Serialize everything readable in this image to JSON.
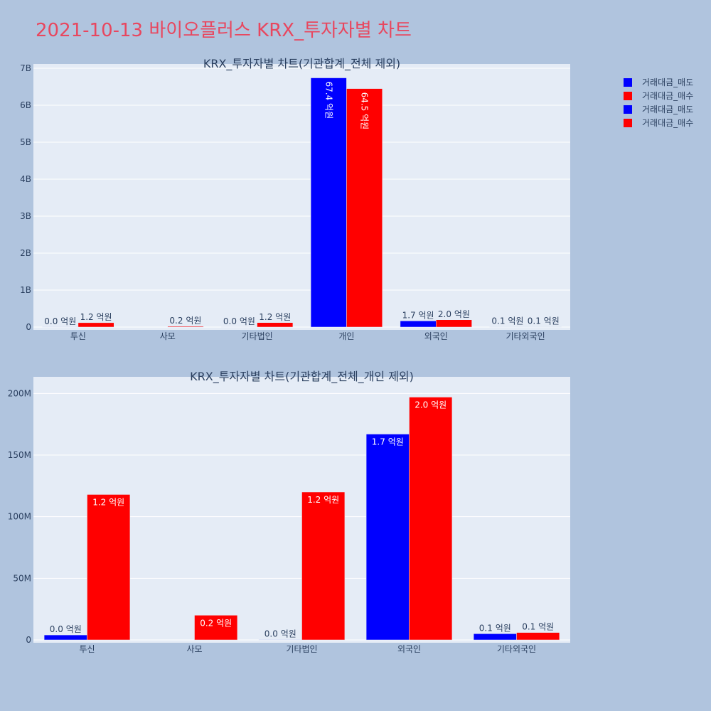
{
  "page_title": "2021-10-13 바이오플러스 KRX_투자자별 차트",
  "legend": [
    {
      "label": "거래대금_매도",
      "color": "#0000ff"
    },
    {
      "label": "거래대금_매수",
      "color": "#ff0000"
    },
    {
      "label": "거래대금_매도",
      "color": "#0000ff"
    },
    {
      "label": "거래대금_매수",
      "color": "#ff0000"
    }
  ],
  "chart_data": [
    {
      "type": "bar",
      "title": "KRX_투자자별 차트(기관합계_전체 제외)",
      "categories": [
        "투신",
        "사모",
        "기타법인",
        "개인",
        "외국인",
        "기타외국인"
      ],
      "ylim": [
        0,
        7000000000
      ],
      "yticks": [
        0,
        1000000000,
        2000000000,
        3000000000,
        4000000000,
        5000000000,
        6000000000,
        7000000000
      ],
      "ytick_labels": [
        "0",
        "1B",
        "2B",
        "3B",
        "4B",
        "5B",
        "6B",
        "7B"
      ],
      "grid": true,
      "series": [
        {
          "name": "거래대금_매도",
          "color": "#0000ff",
          "values": [
            4000000,
            0,
            300000,
            6740000000,
            167000000,
            5000000
          ],
          "labels": [
            "0.0 억원",
            "",
            "0.0 억원",
            "67.4 억원",
            "1.7 억원",
            "0.1 억원"
          ]
        },
        {
          "name": "거래대금_매수",
          "color": "#ff0000",
          "values": [
            118000000,
            20000000,
            120000000,
            6450000000,
            197000000,
            6000000
          ],
          "labels": [
            "1.2 억원",
            "0.2 억원",
            "1.2 억원",
            "64.5 억원",
            "2.0 억원",
            "0.1 억원"
          ]
        }
      ]
    },
    {
      "type": "bar",
      "title": "KRX_투자자별 차트(기관합계_전체_개인 제외)",
      "categories": [
        "투신",
        "사모",
        "기타법인",
        "외국인",
        "기타외국인"
      ],
      "ylim": [
        0,
        210000000
      ],
      "yticks": [
        0,
        50000000,
        100000000,
        150000000,
        200000000
      ],
      "ytick_labels": [
        "0",
        "50M",
        "100M",
        "150M",
        "200M"
      ],
      "grid": true,
      "series": [
        {
          "name": "거래대금_매도",
          "color": "#0000ff",
          "values": [
            4000000,
            0,
            300000,
            167000000,
            5000000
          ],
          "labels": [
            "0.0 억원",
            "",
            "0.0 억원",
            "1.7 억원",
            "0.1 억원"
          ]
        },
        {
          "name": "거래대금_매수",
          "color": "#ff0000",
          "values": [
            118000000,
            20000000,
            120000000,
            197000000,
            6000000
          ],
          "labels": [
            "1.2 억원",
            "0.2 억원",
            "1.2 억원",
            "2.0 억원",
            "0.1 억원"
          ]
        }
      ]
    }
  ]
}
